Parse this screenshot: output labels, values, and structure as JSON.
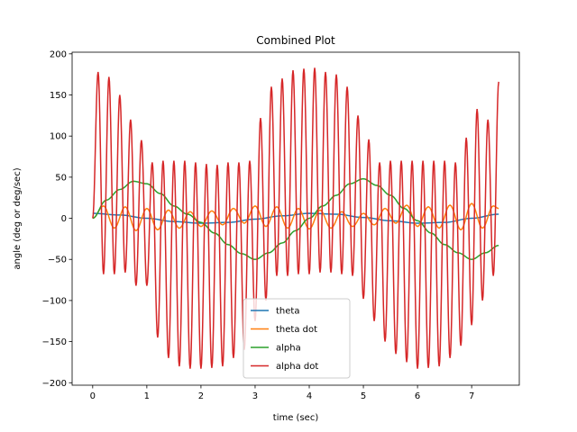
{
  "chart_data": {
    "type": "line",
    "title": "Combined Plot",
    "xlabel": "time (sec)",
    "ylabel": "angle (deg or deg/sec)",
    "xlim": [
      -0.38,
      7.88
    ],
    "ylim": [
      -203,
      202
    ],
    "xticks": [
      0,
      1,
      2,
      3,
      4,
      5,
      6,
      7
    ],
    "yticks": [
      -200,
      -150,
      -100,
      -50,
      0,
      50,
      100,
      150,
      200
    ],
    "grid": false,
    "legend_position": "lower center",
    "series": [
      {
        "name": "theta",
        "color": "#1f77b4",
        "x": [
          0,
          0.5,
          1,
          1.5,
          2,
          2.5,
          3,
          3.5,
          4,
          4.5,
          5,
          5.5,
          6,
          6.5,
          7,
          7.5
        ],
        "y": [
          6,
          4,
          0,
          -4,
          -6,
          -5,
          -1,
          3,
          6,
          5,
          1,
          -3,
          -6,
          -5,
          0,
          5
        ]
      },
      {
        "name": "theta dot",
        "color": "#ff7f0e",
        "x": [
          0,
          0.2,
          0.4,
          0.6,
          0.8,
          1.0,
          1.2,
          1.4,
          1.6,
          1.8,
          2.0,
          2.2,
          2.4,
          2.6,
          2.8,
          3.0,
          3.2,
          3.4,
          3.6,
          3.8,
          4.0,
          4.2,
          4.4,
          4.6,
          4.8,
          5.0,
          5.2,
          5.4,
          5.6,
          5.8,
          6.0,
          6.2,
          6.4,
          6.6,
          6.8,
          7.0,
          7.2,
          7.4,
          7.5
        ],
        "y": [
          0,
          15,
          -12,
          14,
          -15,
          12,
          -14,
          10,
          -12,
          8,
          -10,
          9,
          -8,
          12,
          -6,
          15,
          -10,
          14,
          -12,
          12,
          -13,
          10,
          -12,
          8,
          -10,
          6,
          -8,
          12,
          -6,
          16,
          -10,
          14,
          -12,
          16,
          -14,
          18,
          -12,
          15,
          12
        ]
      },
      {
        "name": "alpha",
        "color": "#2ca02c",
        "x": [
          0,
          0.25,
          0.5,
          0.75,
          1.0,
          1.25,
          1.5,
          1.75,
          2.0,
          2.25,
          2.5,
          2.75,
          3.0,
          3.25,
          3.5,
          3.75,
          4.0,
          4.25,
          4.5,
          4.75,
          5.0,
          5.25,
          5.5,
          5.75,
          6.0,
          6.25,
          6.5,
          6.75,
          7.0,
          7.25,
          7.5
        ],
        "y": [
          0,
          22,
          35,
          45,
          42,
          30,
          15,
          5,
          -5,
          -18,
          -32,
          -43,
          -50,
          -42,
          -30,
          -15,
          0,
          15,
          28,
          42,
          48,
          40,
          28,
          12,
          -3,
          -18,
          -32,
          -42,
          -50,
          -42,
          -33
        ]
      },
      {
        "name": "alpha dot",
        "color": "#d62728",
        "peak_times": [
          0.1,
          0.3,
          0.5,
          0.7,
          0.9,
          1.1,
          1.3,
          1.5,
          1.7,
          1.9,
          2.1,
          2.3,
          2.5,
          2.7,
          2.9,
          3.1,
          3.3,
          3.5,
          3.7,
          3.9,
          4.1,
          4.3,
          4.5,
          4.7,
          4.9,
          5.1,
          5.3,
          5.5,
          5.7,
          5.9,
          6.1,
          6.3,
          6.5,
          6.7,
          6.9,
          7.1,
          7.3,
          7.5
        ],
        "peak_values": [
          178,
          172,
          150,
          120,
          95,
          68,
          70,
          70,
          70,
          68,
          66,
          65,
          68,
          68,
          70,
          122,
          160,
          170,
          180,
          182,
          183,
          178,
          175,
          160,
          125,
          96,
          68,
          70,
          70,
          70,
          70,
          70,
          70,
          68,
          98,
          133,
          120,
          166
        ],
        "trough_times": [
          0.2,
          0.4,
          0.6,
          0.8,
          1.0,
          1.2,
          1.4,
          1.6,
          1.8,
          2.0,
          2.2,
          2.4,
          2.6,
          2.8,
          3.0,
          3.2,
          3.4,
          3.6,
          3.8,
          4.0,
          4.2,
          4.4,
          4.6,
          4.8,
          5.0,
          5.2,
          5.4,
          5.6,
          5.8,
          6.0,
          6.2,
          6.4,
          6.6,
          6.8,
          7.0,
          7.2,
          7.4
        ],
        "trough_values": [
          -68,
          -68,
          -66,
          -82,
          -82,
          -145,
          -170,
          -180,
          -183,
          -183,
          -182,
          -180,
          -170,
          -160,
          -125,
          -100,
          -70,
          -70,
          -68,
          -68,
          -66,
          -66,
          -68,
          -70,
          -98,
          -125,
          -150,
          -165,
          -175,
          -183,
          -182,
          -180,
          -170,
          -155,
          -130,
          -100,
          -70
        ]
      }
    ]
  }
}
